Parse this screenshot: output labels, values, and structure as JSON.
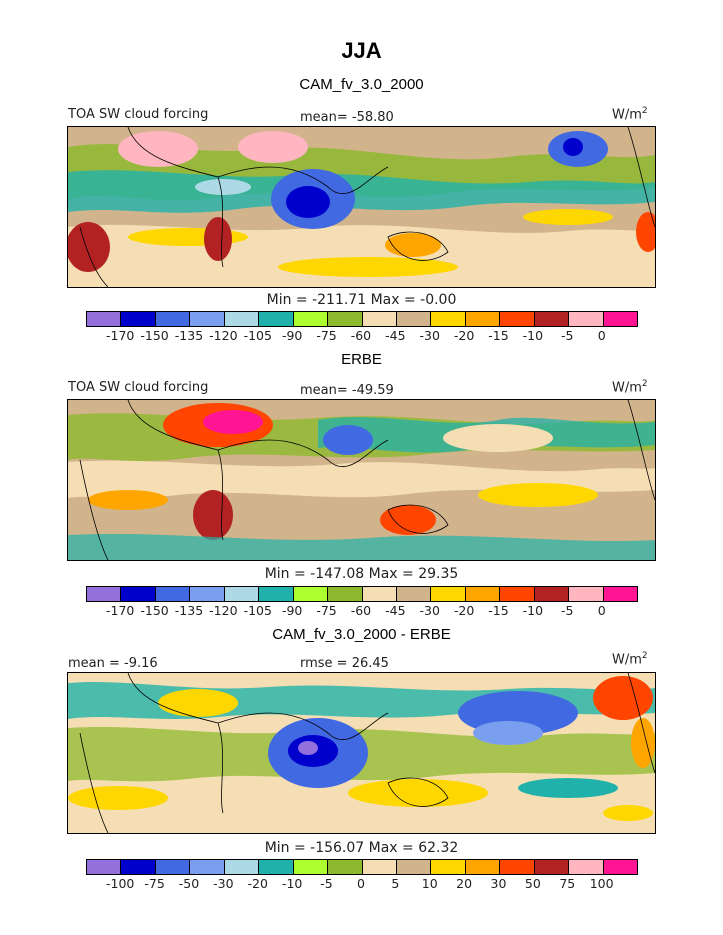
{
  "title": "JJA",
  "panels": [
    {
      "title": "CAM_fv_3.0_2000",
      "left_label": "TOA SW cloud forcing",
      "mid_label": "mean= -58.80",
      "units": "W/m",
      "units_sup": "2",
      "stats": "Min = -211.71 Max =  -0.00",
      "ticks": [
        "-170",
        "-150",
        "-135",
        "-120",
        "-105",
        "-90",
        "-75",
        "-60",
        "-45",
        "-30",
        "-20",
        "-15",
        "-10",
        "-5",
        "0"
      ]
    },
    {
      "title": "ERBE",
      "left_label": "TOA SW cloud forcing",
      "mid_label": "mean= -49.59",
      "units": "W/m",
      "units_sup": "2",
      "stats": "Min = -147.08 Max =  29.35",
      "ticks": [
        "-170",
        "-150",
        "-135",
        "-120",
        "-105",
        "-90",
        "-75",
        "-60",
        "-45",
        "-30",
        "-20",
        "-15",
        "-10",
        "-5",
        "0"
      ]
    },
    {
      "title": "CAM_fv_3.0_2000 - ERBE",
      "left_label": "mean =  -9.16",
      "mid_label": "rmse =  26.45",
      "units": "W/m",
      "units_sup": "2",
      "stats": "Min = -156.07 Max =  62.32",
      "ticks": [
        "-100",
        "-75",
        "-50",
        "-30",
        "-20",
        "-10",
        "-5",
        "0",
        "5",
        "10",
        "20",
        "30",
        "50",
        "75",
        "100"
      ]
    }
  ],
  "colors": [
    "#9370db",
    "#0000cd",
    "#4169e1",
    "#7b9ff0",
    "#add8e6",
    "#20b2aa",
    "#adff2f",
    "#8db92e",
    "#f5deb3",
    "#d2b48c",
    "#ffd700",
    "#ffa500",
    "#ff4500",
    "#b22222",
    "#ffb6c1",
    "#ff1493"
  ]
}
